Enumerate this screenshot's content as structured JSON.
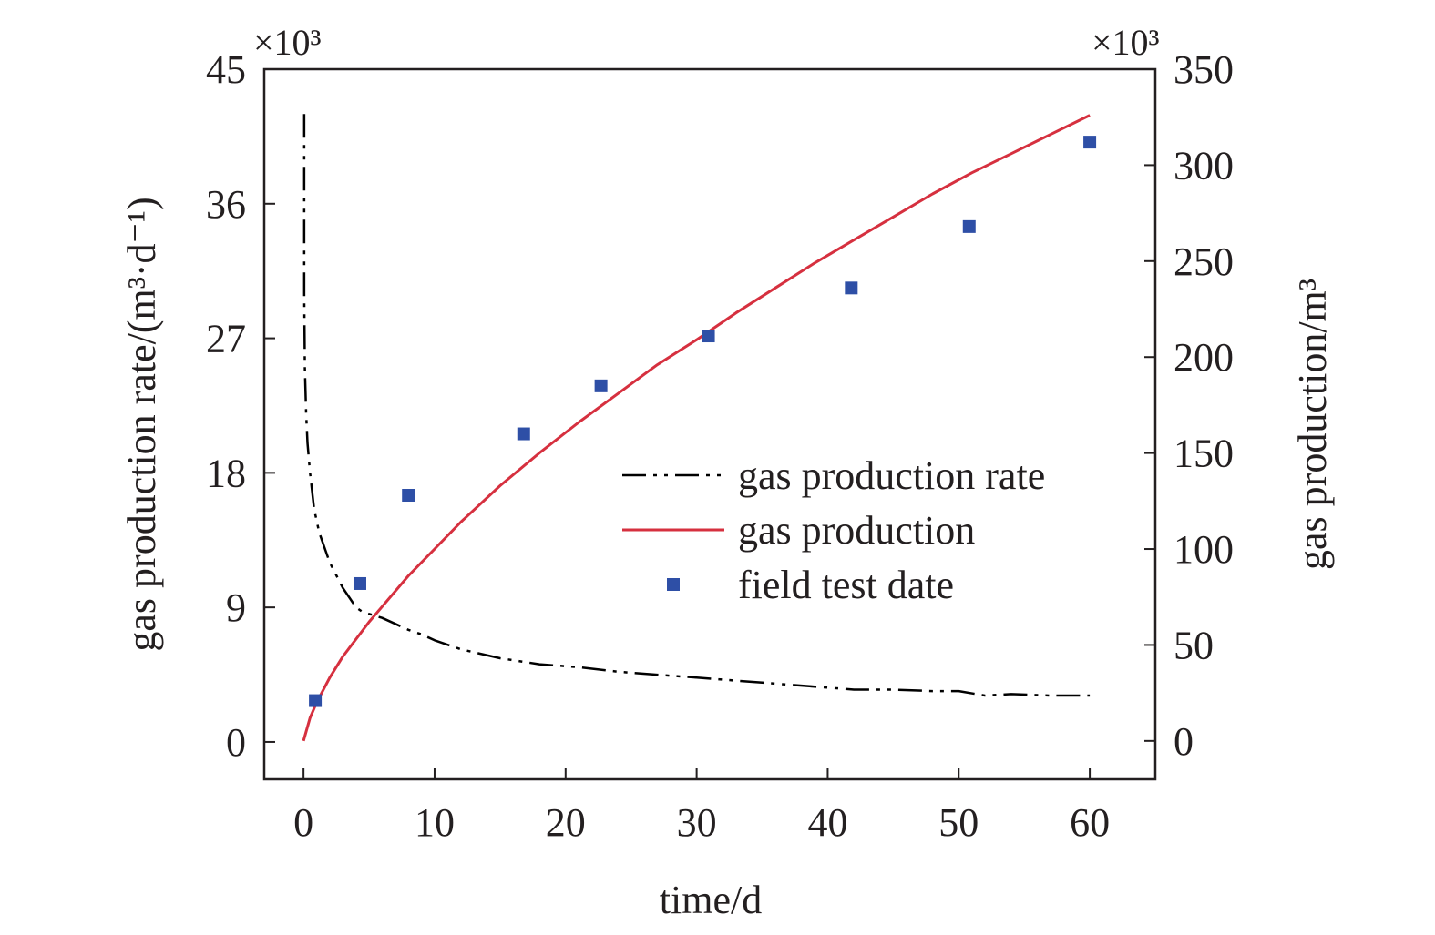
{
  "chart_data": {
    "type": "line",
    "xlabel": "time/d",
    "ylabel_left": "gas production rate/(m³·d⁻¹)",
    "ylabel_right": "gas production/m³",
    "left_multiplier": "×10³",
    "right_multiplier": "×10³",
    "x_range": [
      -3,
      65
    ],
    "y_left_range": [
      -2.5,
      45
    ],
    "y_right_range": [
      -20,
      350
    ],
    "x_ticks": [
      0,
      10,
      20,
      30,
      40,
      50,
      60
    ],
    "y_left_ticks": [
      0,
      9,
      18,
      27,
      36,
      45
    ],
    "y_right_ticks": [
      0,
      50,
      100,
      150,
      200,
      250,
      300,
      350
    ],
    "grid": false,
    "legend_position": "center-right",
    "series": [
      {
        "name": "gas production rate",
        "axis": "left",
        "style": "dash-dot-dot",
        "color": "#000000",
        "x": [
          0.05,
          0.05,
          0.1,
          0.2,
          0.3,
          0.5,
          0.8,
          1.2,
          2,
          3,
          4,
          4.5,
          6,
          8,
          9,
          10,
          12,
          15,
          18,
          21,
          24,
          27,
          30,
          33,
          36,
          39,
          42,
          45,
          48,
          50,
          52,
          54,
          57,
          60
        ],
        "y": [
          42,
          30,
          25,
          22,
          20,
          18,
          15.6,
          14,
          12,
          10.3,
          9,
          8.7,
          8.3,
          7.5,
          7.2,
          6.8,
          6.2,
          5.6,
          5.2,
          5.0,
          4.7,
          4.5,
          4.3,
          4.1,
          3.9,
          3.7,
          3.5,
          3.5,
          3.4,
          3.4,
          3.1,
          3.2,
          3.1,
          3.1
        ]
      },
      {
        "name": "gas production",
        "axis": "right",
        "style": "solid",
        "color": "#d6303f",
        "x": [
          0,
          0.5,
          1,
          2,
          3,
          4,
          5,
          6,
          8,
          10,
          12,
          15,
          18,
          21,
          24,
          27,
          30,
          33,
          36,
          39,
          42,
          45,
          48,
          51,
          54,
          57,
          60
        ],
        "y": [
          0,
          12,
          20,
          33,
          44,
          53,
          62,
          70,
          86,
          100,
          114,
          133,
          150,
          166,
          181,
          196,
          209,
          223,
          236,
          249,
          261,
          273,
          285,
          296,
          306,
          316,
          326
        ]
      },
      {
        "name": "field test date",
        "axis": "right",
        "style": "marker-square",
        "color": "#2e4fa6",
        "x": [
          0.9,
          4.3,
          8,
          16.8,
          22.7,
          30.9,
          41.8,
          50.8,
          60
        ],
        "y": [
          21,
          82,
          128,
          160,
          185,
          211,
          236,
          268,
          312
        ]
      }
    ]
  }
}
